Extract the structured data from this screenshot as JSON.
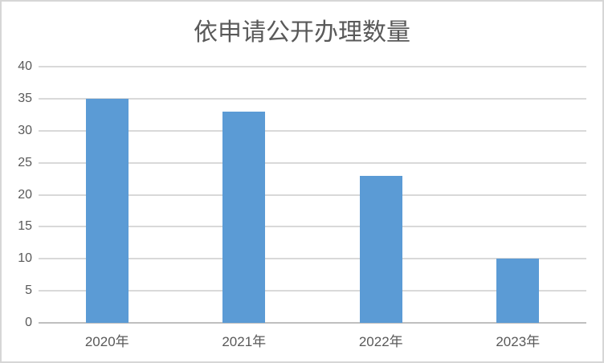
{
  "chart_data": {
    "type": "bar",
    "title": "依申请公开办理数量",
    "categories": [
      "2020年",
      "2021年",
      "2022年",
      "2023年"
    ],
    "values": [
      35,
      33,
      23,
      10
    ],
    "ylim": [
      0,
      40
    ],
    "ytick_step": 5,
    "yticks": [
      0,
      5,
      10,
      15,
      20,
      25,
      30,
      35,
      40
    ],
    "grid": true,
    "legend_position": "none",
    "xlabel": "",
    "ylabel": "",
    "colors": {
      "bar_fill": "#5b9bd5",
      "gridline": "#d9d9d9",
      "axis_line": "#bfbfbf",
      "text": "#595959",
      "background": "#ffffff",
      "border": "#d6d6d6"
    }
  }
}
